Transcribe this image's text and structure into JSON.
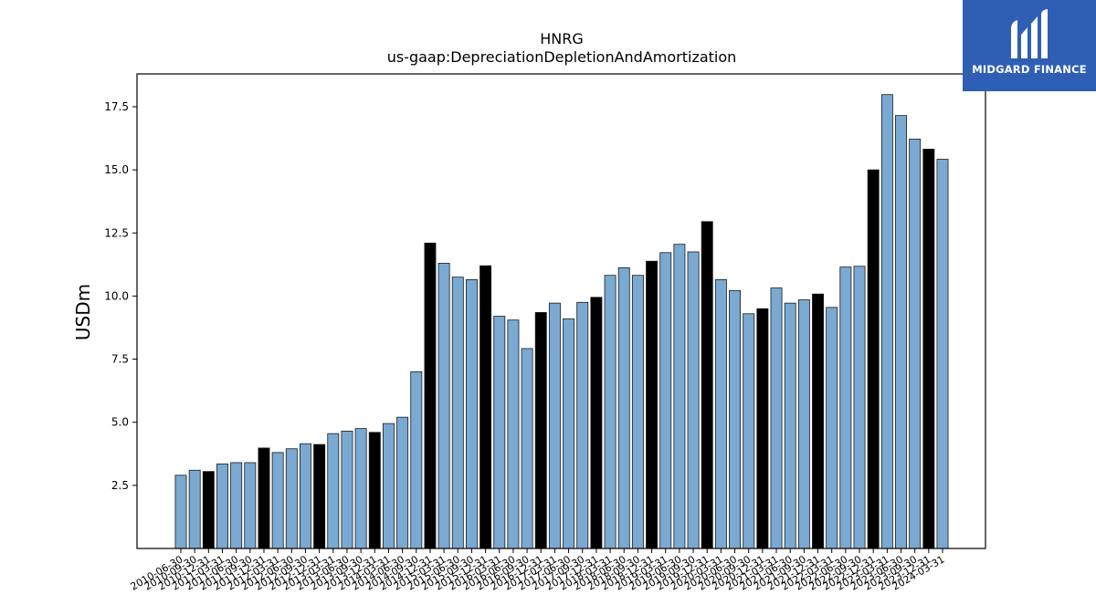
{
  "brand": {
    "name": "MIDGARD FINANCE",
    "icon": "midgard-logo-icon",
    "color": "#2e5fb5"
  },
  "chart_data": {
    "type": "bar",
    "title": "HNRG",
    "subtitle": "us-gaap:DepreciationDepletionAndAmortization",
    "xlabel": "",
    "ylabel": "USDm",
    "ylim": [
      0,
      18.8
    ],
    "yticks": [
      2.5,
      5.0,
      7.5,
      10.0,
      12.5,
      15.0,
      17.5
    ],
    "ytick_labels": [
      "2.5",
      "5.0",
      "7.5",
      "10.0",
      "12.5",
      "15.0",
      "17.5"
    ],
    "grid": false,
    "legend": "none",
    "colors": {
      "quarter": "#7aa9d2",
      "year_end": "#000000",
      "edge": "#1a1a1a"
    },
    "categories": [
      "2010-06-30",
      "2010-09-30",
      "2010-12-31",
      "2011-03-31",
      "2011-06-30",
      "2011-09-30",
      "2011-12-31",
      "2012-03-31",
      "2012-06-30",
      "2012-09-30",
      "2012-12-31",
      "2013-03-31",
      "2013-06-30",
      "2013-09-30",
      "2013-12-31",
      "2014-03-31",
      "2014-06-30",
      "2014-09-30",
      "2014-12-31",
      "2015-03-31",
      "2015-06-30",
      "2015-09-30",
      "2015-12-31",
      "2016-03-31",
      "2016-06-30",
      "2016-09-30",
      "2016-12-31",
      "2017-03-31",
      "2017-06-30",
      "2017-09-30",
      "2017-12-31",
      "2018-03-31",
      "2018-06-30",
      "2018-09-30",
      "2018-12-31",
      "2019-03-31",
      "2019-06-30",
      "2019-09-30",
      "2019-12-31",
      "2020-03-31",
      "2020-06-30",
      "2020-09-30",
      "2020-12-31",
      "2021-03-31",
      "2021-06-30",
      "2021-09-30",
      "2021-12-31",
      "2022-03-31",
      "2022-06-30",
      "2022-09-30",
      "2022-12-31",
      "2023-03-31",
      "2023-06-30",
      "2023-09-30",
      "2023-12-31",
      "2024-03-31"
    ],
    "values": [
      2.9,
      3.1,
      3.05,
      3.35,
      3.4,
      3.4,
      3.98,
      3.8,
      3.95,
      4.15,
      4.12,
      4.55,
      4.65,
      4.75,
      4.6,
      4.95,
      5.2,
      7.0,
      12.1,
      11.3,
      10.75,
      10.65,
      11.2,
      9.2,
      9.05,
      7.92,
      9.35,
      9.72,
      9.1,
      9.75,
      9.95,
      10.82,
      11.12,
      10.82,
      11.38,
      11.72,
      12.05,
      11.75,
      12.95,
      10.65,
      10.22,
      9.3,
      9.5,
      10.32,
      9.72,
      9.85,
      10.08,
      9.55,
      11.15,
      11.18,
      15.0,
      17.98,
      17.15,
      16.22,
      15.82,
      15.42
    ],
    "year_end": [
      false,
      false,
      true,
      false,
      false,
      false,
      true,
      false,
      false,
      false,
      true,
      false,
      false,
      false,
      true,
      false,
      false,
      false,
      true,
      false,
      false,
      false,
      true,
      false,
      false,
      false,
      true,
      false,
      false,
      false,
      true,
      false,
      false,
      false,
      true,
      false,
      false,
      false,
      true,
      false,
      false,
      false,
      true,
      false,
      false,
      false,
      true,
      false,
      false,
      false,
      true,
      false,
      false,
      false,
      true,
      false
    ]
  }
}
